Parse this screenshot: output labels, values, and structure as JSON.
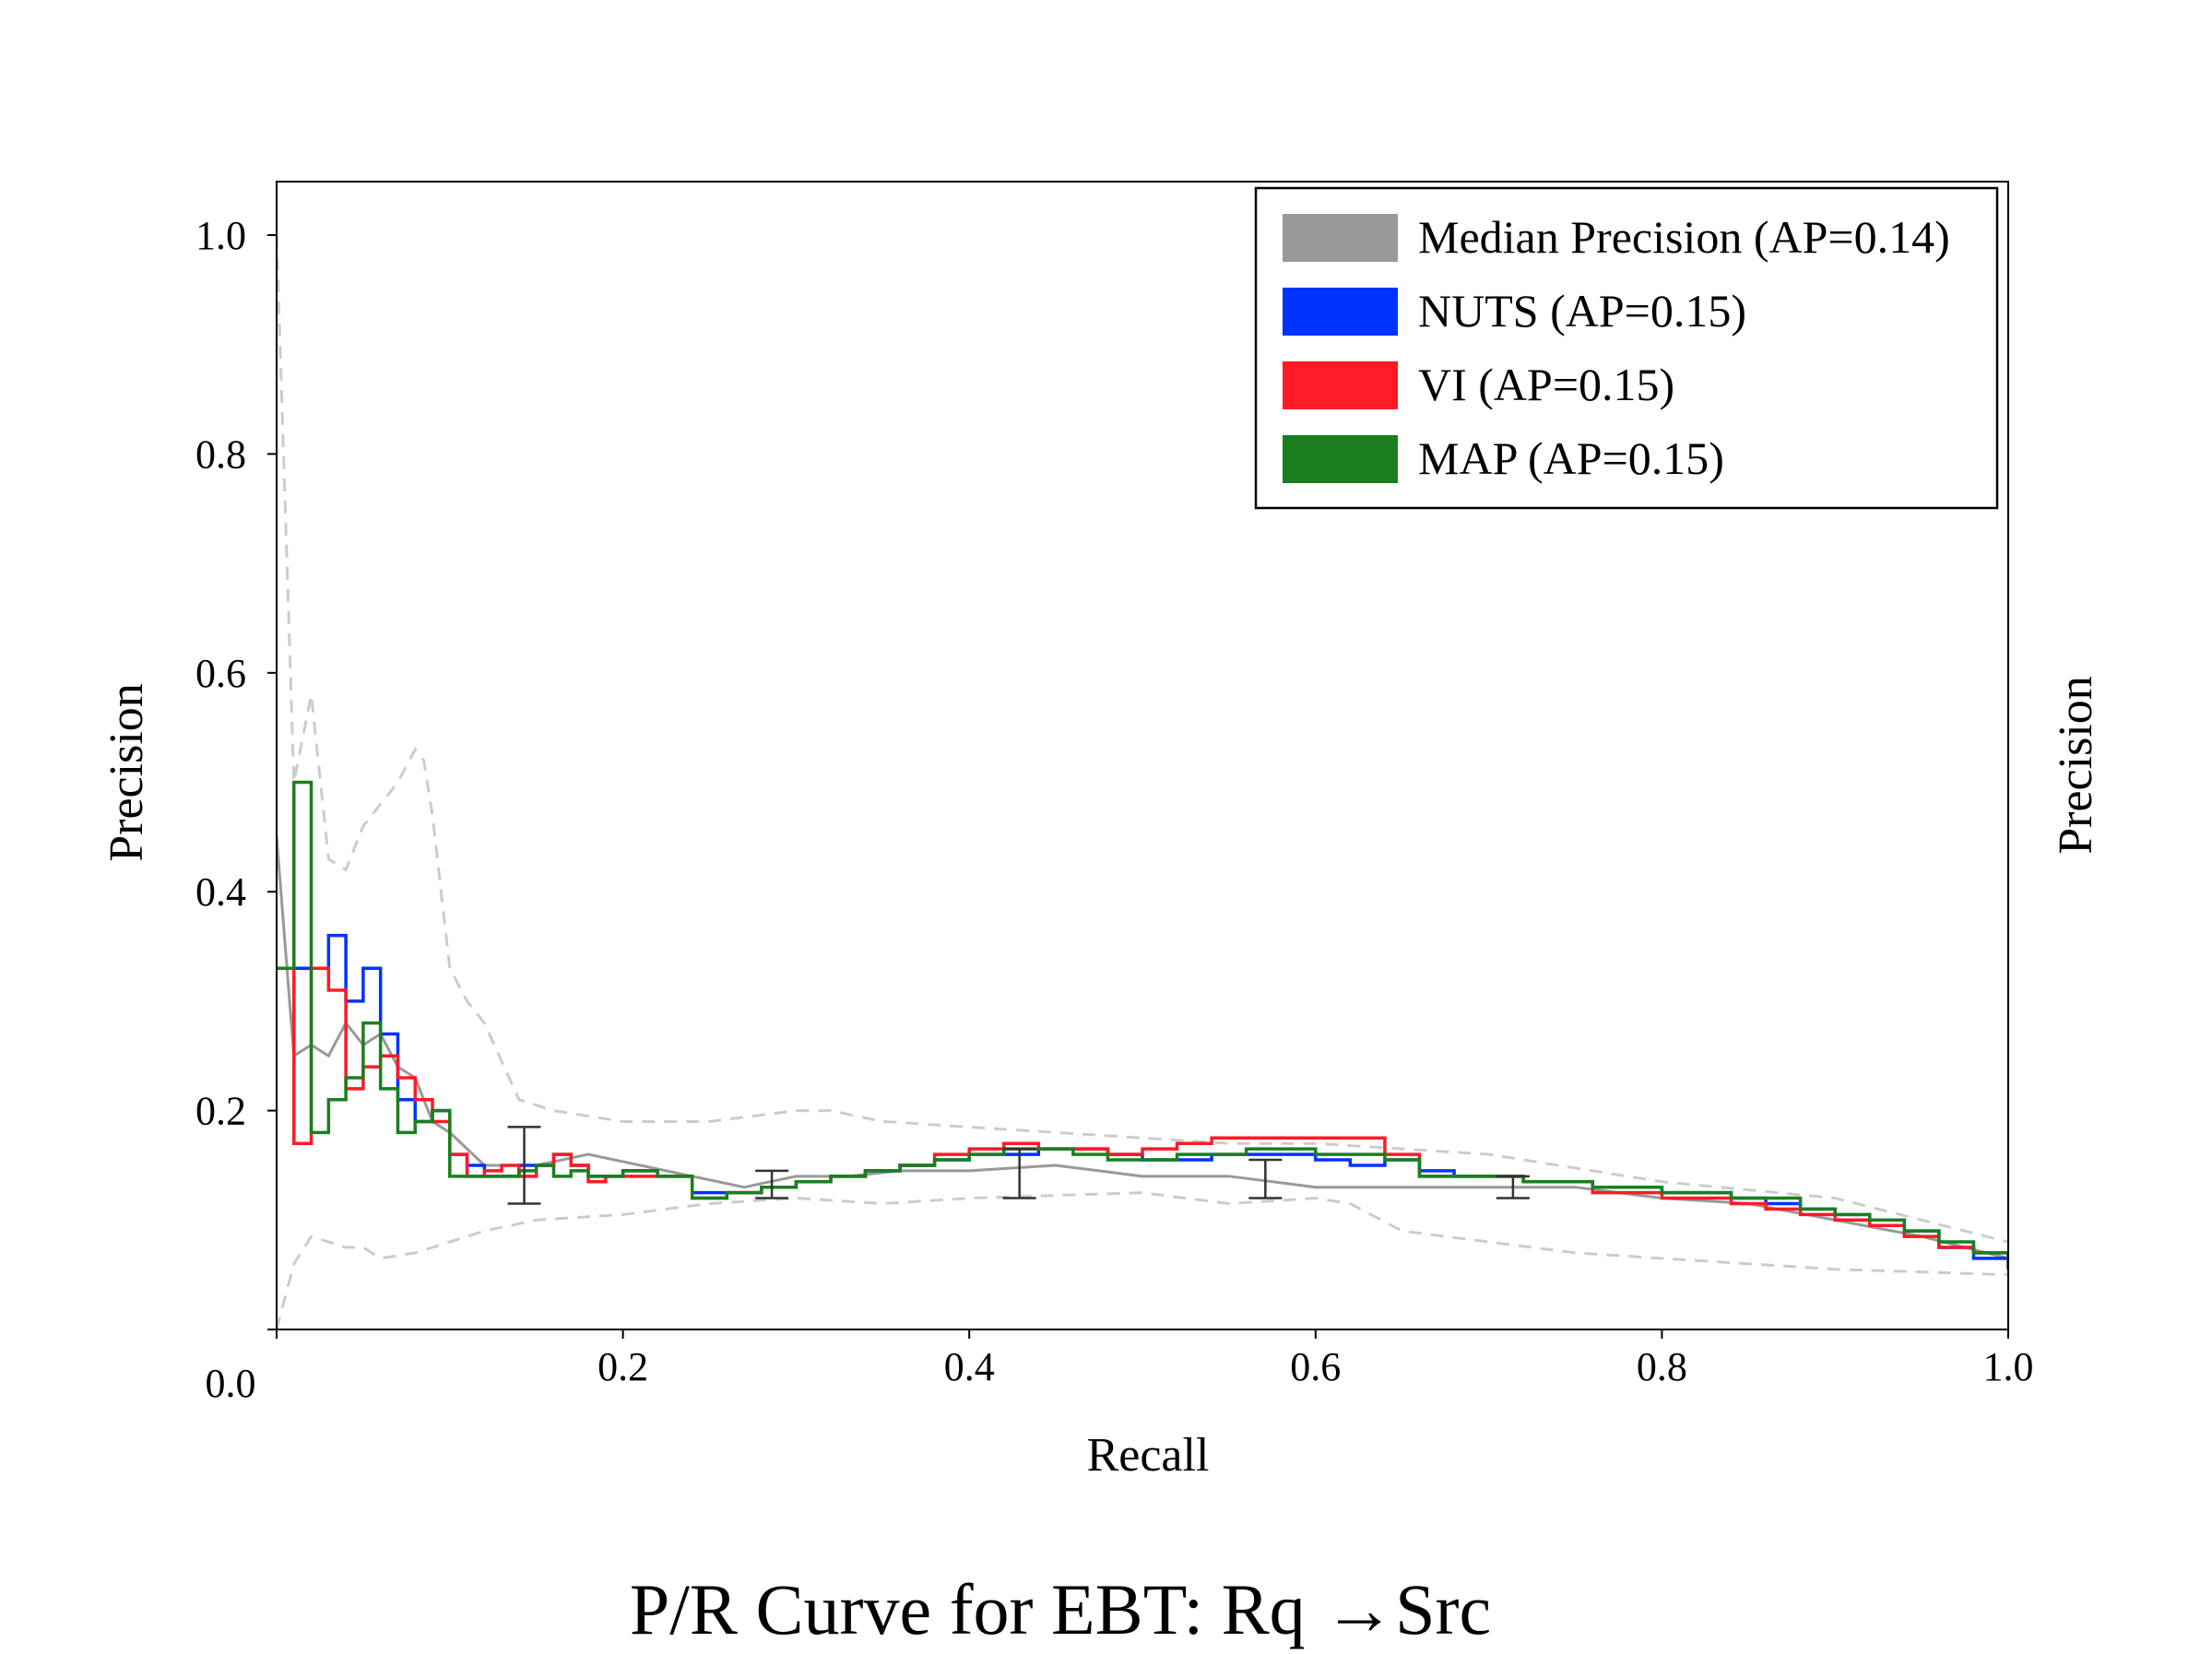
{
  "chart_data": {
    "type": "line",
    "title": "P/R Curve for EBT: Rq →Src",
    "xlabel": "Recall",
    "ylabel": "Precision",
    "ylabel_right": "Precision",
    "xlim": [
      0.0,
      1.0
    ],
    "ylim": [
      0.0,
      1.0
    ],
    "x_ticks": [
      0.0,
      0.2,
      0.4,
      0.6,
      0.8,
      1.0
    ],
    "x_tick_labels": [
      "0.0",
      "0.2",
      "0.4",
      "0.6",
      "0.8",
      "1.0"
    ],
    "y_ticks": [
      0.2,
      0.4,
      0.6,
      0.8,
      1.0
    ],
    "y_tick_labels": [
      "0.2",
      "0.4",
      "0.6",
      "0.8",
      "1.0"
    ],
    "grid": false,
    "legend_position": "top-right",
    "colors": {
      "median": "#999999",
      "nuts": "#0033ff",
      "vi": "#ff1a26",
      "map": "#1a7f1f",
      "band": "#cccccc",
      "errorbar": "#333333"
    },
    "legend": [
      {
        "label": "Median Precision (AP=0.14)",
        "color": "#999999"
      },
      {
        "label": "NUTS (AP=0.15)",
        "color": "#0033ff"
      },
      {
        "label": "VI (AP=0.15)",
        "color": "#ff1a26"
      },
      {
        "label": "MAP (AP=0.15)",
        "color": "#1a7f1f"
      }
    ],
    "series": [
      {
        "name": "Median Precision (AP=0.14)",
        "style": "solid-line",
        "color": "#999999",
        "x": [
          0.0,
          0.01,
          0.02,
          0.03,
          0.04,
          0.05,
          0.06,
          0.07,
          0.08,
          0.09,
          0.1,
          0.12,
          0.15,
          0.18,
          0.21,
          0.24,
          0.27,
          0.3,
          0.33,
          0.36,
          0.4,
          0.45,
          0.5,
          0.55,
          0.6,
          0.65,
          0.7,
          0.75,
          0.8,
          0.85,
          0.9,
          0.95,
          1.0
        ],
        "y": [
          0.45,
          0.25,
          0.26,
          0.25,
          0.28,
          0.26,
          0.27,
          0.24,
          0.23,
          0.19,
          0.18,
          0.15,
          0.15,
          0.16,
          0.15,
          0.14,
          0.13,
          0.14,
          0.14,
          0.145,
          0.145,
          0.15,
          0.14,
          0.14,
          0.13,
          0.13,
          0.13,
          0.13,
          0.12,
          0.115,
          0.1,
          0.085,
          0.065
        ]
      },
      {
        "name": "band-upper",
        "style": "dashed-line",
        "color": "#cccccc",
        "x": [
          0.0,
          0.01,
          0.02,
          0.03,
          0.04,
          0.05,
          0.06,
          0.07,
          0.08,
          0.085,
          0.09,
          0.1,
          0.11,
          0.12,
          0.14,
          0.16,
          0.2,
          0.25,
          0.3,
          0.32,
          0.35,
          0.4,
          0.45,
          0.5,
          0.55,
          0.6,
          0.65,
          0.7,
          0.72,
          0.8,
          0.9,
          0.95,
          1.0
        ],
        "y": [
          1.0,
          0.5,
          0.58,
          0.43,
          0.42,
          0.46,
          0.48,
          0.5,
          0.53,
          0.52,
          0.47,
          0.33,
          0.3,
          0.28,
          0.21,
          0.2,
          0.19,
          0.19,
          0.2,
          0.2,
          0.19,
          0.185,
          0.18,
          0.175,
          0.17,
          0.17,
          0.165,
          0.16,
          0.155,
          0.135,
          0.12,
          0.1,
          0.08
        ]
      },
      {
        "name": "band-lower",
        "style": "dashed-line",
        "color": "#cccccc",
        "x": [
          0.0,
          0.01,
          0.02,
          0.03,
          0.04,
          0.05,
          0.06,
          0.08,
          0.1,
          0.12,
          0.15,
          0.2,
          0.25,
          0.3,
          0.35,
          0.4,
          0.5,
          0.55,
          0.6,
          0.62,
          0.65,
          0.7,
          0.75,
          0.8,
          0.9,
          1.0
        ],
        "y": [
          0.0,
          0.06,
          0.085,
          0.08,
          0.075,
          0.075,
          0.065,
          0.07,
          0.08,
          0.09,
          0.1,
          0.105,
          0.115,
          0.12,
          0.115,
          0.12,
          0.125,
          0.115,
          0.12,
          0.115,
          0.09,
          0.08,
          0.07,
          0.065,
          0.055,
          0.05
        ]
      },
      {
        "name": "NUTS (AP=0.15)",
        "style": "step",
        "color": "#0033ff",
        "x": [
          0.0,
          0.01,
          0.02,
          0.03,
          0.04,
          0.05,
          0.06,
          0.07,
          0.08,
          0.09,
          0.1,
          0.11,
          0.12,
          0.13,
          0.14,
          0.15,
          0.16,
          0.17,
          0.18,
          0.19,
          0.2,
          0.22,
          0.24,
          0.26,
          0.28,
          0.3,
          0.32,
          0.34,
          0.36,
          0.38,
          0.4,
          0.42,
          0.44,
          0.46,
          0.48,
          0.5,
          0.52,
          0.54,
          0.56,
          0.58,
          0.6,
          0.62,
          0.64,
          0.66,
          0.68,
          0.7,
          0.72,
          0.74,
          0.76,
          0.78,
          0.8,
          0.82,
          0.84,
          0.86,
          0.88,
          0.9,
          0.92,
          0.94,
          0.96,
          0.98,
          1.0
        ],
        "y": [
          0.33,
          0.33,
          0.33,
          0.36,
          0.3,
          0.33,
          0.27,
          0.21,
          0.19,
          0.2,
          0.16,
          0.15,
          0.14,
          0.14,
          0.15,
          0.15,
          0.16,
          0.15,
          0.14,
          0.14,
          0.145,
          0.14,
          0.125,
          0.125,
          0.13,
          0.135,
          0.14,
          0.145,
          0.15,
          0.155,
          0.16,
          0.16,
          0.165,
          0.165,
          0.16,
          0.155,
          0.155,
          0.16,
          0.16,
          0.16,
          0.155,
          0.15,
          0.155,
          0.145,
          0.14,
          0.14,
          0.135,
          0.135,
          0.13,
          0.13,
          0.125,
          0.125,
          0.12,
          0.115,
          0.11,
          0.105,
          0.1,
          0.09,
          0.075,
          0.065,
          0.055
        ]
      },
      {
        "name": "VI (AP=0.15)",
        "style": "step",
        "color": "#ff1a26",
        "x": [
          0.0,
          0.01,
          0.02,
          0.03,
          0.04,
          0.05,
          0.06,
          0.07,
          0.08,
          0.09,
          0.1,
          0.11,
          0.12,
          0.13,
          0.14,
          0.15,
          0.16,
          0.17,
          0.18,
          0.19,
          0.2,
          0.22,
          0.24,
          0.26,
          0.28,
          0.3,
          0.32,
          0.34,
          0.36,
          0.38,
          0.4,
          0.42,
          0.44,
          0.46,
          0.48,
          0.5,
          0.52,
          0.54,
          0.56,
          0.58,
          0.6,
          0.62,
          0.64,
          0.66,
          0.68,
          0.7,
          0.72,
          0.74,
          0.76,
          0.78,
          0.8,
          0.82,
          0.84,
          0.86,
          0.88,
          0.9,
          0.92,
          0.94,
          0.96,
          0.98,
          1.0
        ],
        "y": [
          0.33,
          0.17,
          0.33,
          0.31,
          0.22,
          0.24,
          0.25,
          0.23,
          0.21,
          0.19,
          0.16,
          0.14,
          0.145,
          0.15,
          0.14,
          0.15,
          0.16,
          0.15,
          0.135,
          0.14,
          0.14,
          0.14,
          0.12,
          0.125,
          0.13,
          0.135,
          0.14,
          0.145,
          0.15,
          0.16,
          0.165,
          0.17,
          0.165,
          0.165,
          0.16,
          0.165,
          0.17,
          0.175,
          0.175,
          0.175,
          0.175,
          0.175,
          0.16,
          0.14,
          0.14,
          0.14,
          0.135,
          0.135,
          0.125,
          0.125,
          0.12,
          0.12,
          0.115,
          0.11,
          0.105,
          0.1,
          0.095,
          0.085,
          0.075,
          0.07,
          0.065
        ]
      },
      {
        "name": "MAP (AP=0.15)",
        "style": "step",
        "color": "#1a7f1f",
        "x": [
          0.0,
          0.01,
          0.02,
          0.03,
          0.04,
          0.05,
          0.06,
          0.07,
          0.08,
          0.09,
          0.1,
          0.11,
          0.12,
          0.13,
          0.14,
          0.15,
          0.16,
          0.17,
          0.18,
          0.19,
          0.2,
          0.22,
          0.24,
          0.26,
          0.28,
          0.3,
          0.32,
          0.34,
          0.36,
          0.38,
          0.4,
          0.42,
          0.44,
          0.46,
          0.48,
          0.5,
          0.52,
          0.54,
          0.56,
          0.58,
          0.6,
          0.62,
          0.64,
          0.66,
          0.68,
          0.7,
          0.72,
          0.74,
          0.76,
          0.78,
          0.8,
          0.82,
          0.84,
          0.86,
          0.88,
          0.9,
          0.92,
          0.94,
          0.96,
          0.98,
          1.0
        ],
        "y": [
          0.33,
          0.5,
          0.18,
          0.21,
          0.23,
          0.28,
          0.22,
          0.18,
          0.19,
          0.2,
          0.14,
          0.14,
          0.14,
          0.14,
          0.145,
          0.15,
          0.14,
          0.145,
          0.14,
          0.14,
          0.145,
          0.14,
          0.12,
          0.125,
          0.13,
          0.135,
          0.14,
          0.145,
          0.15,
          0.155,
          0.16,
          0.165,
          0.165,
          0.16,
          0.155,
          0.155,
          0.16,
          0.16,
          0.165,
          0.165,
          0.16,
          0.16,
          0.155,
          0.14,
          0.14,
          0.14,
          0.135,
          0.135,
          0.13,
          0.13,
          0.125,
          0.125,
          0.12,
          0.12,
          0.11,
          0.105,
          0.1,
          0.09,
          0.08,
          0.07,
          0.055
        ]
      }
    ],
    "error_bars": [
      {
        "x": 0.143,
        "y": 0.15,
        "low": 0.115,
        "high": 0.185
      },
      {
        "x": 0.286,
        "y": 0.135,
        "low": 0.12,
        "high": 0.145
      },
      {
        "x": 0.429,
        "y": 0.145,
        "low": 0.12,
        "high": 0.165
      },
      {
        "x": 0.571,
        "y": 0.14,
        "low": 0.12,
        "high": 0.155
      },
      {
        "x": 0.714,
        "y": 0.13,
        "low": 0.12,
        "high": 0.14
      }
    ]
  }
}
